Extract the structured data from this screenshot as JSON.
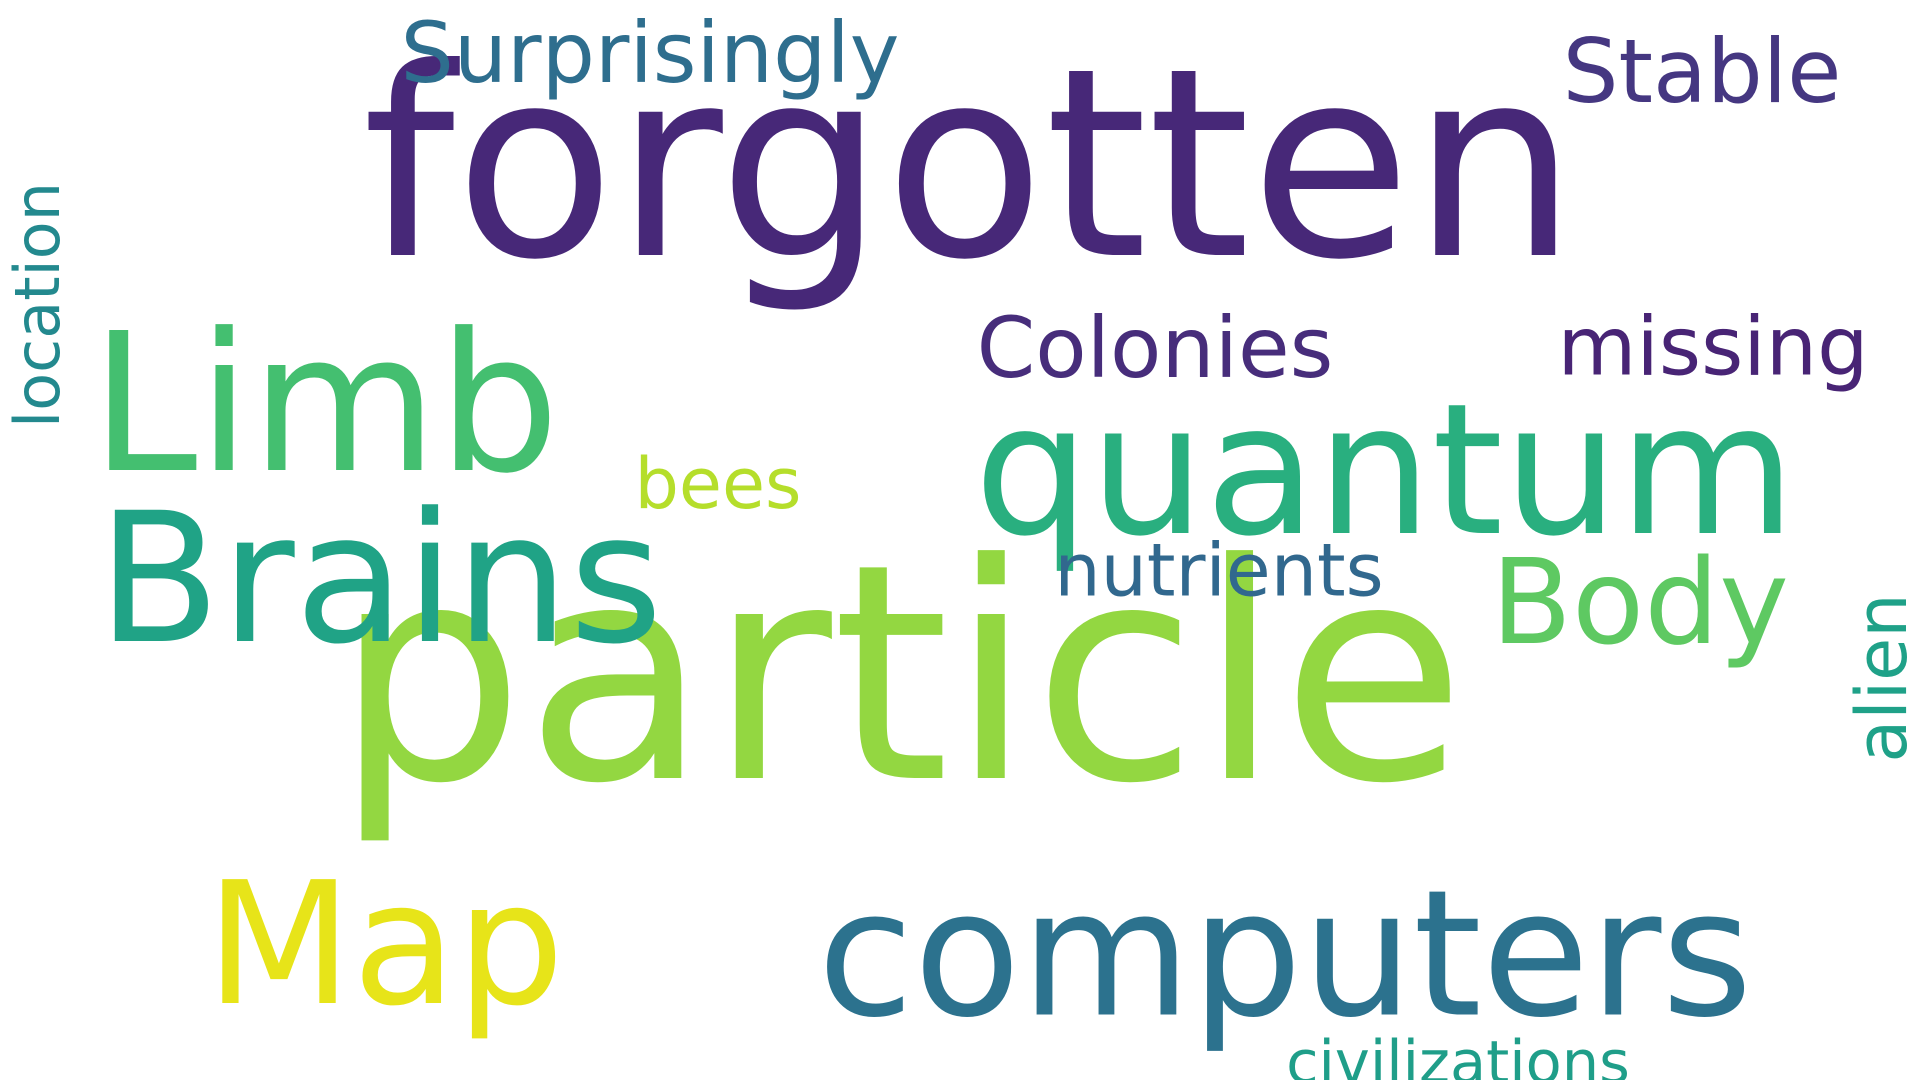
{
  "cloud": {
    "words": [
      {
        "text": "forgotten",
        "color": "#472878"
      },
      {
        "text": "particle",
        "color": "#93d741"
      },
      {
        "text": "quantum",
        "color": "#29af7f"
      },
      {
        "text": "computers",
        "color": "#2c728e"
      },
      {
        "text": "Limb",
        "color": "#44bf70"
      },
      {
        "text": "Brains",
        "color": "#20a386"
      },
      {
        "text": "Map",
        "color": "#e7e419"
      },
      {
        "text": "Body",
        "color": "#5ec962"
      },
      {
        "text": "Surprisingly",
        "color": "#2e6e8e"
      },
      {
        "text": "Stable",
        "color": "#453781"
      },
      {
        "text": "Colonies",
        "color": "#472d7b"
      },
      {
        "text": "missing",
        "color": "#482475"
      },
      {
        "text": "bees",
        "color": "#b5de2b"
      },
      {
        "text": "nutrients",
        "color": "#31688e"
      },
      {
        "text": "location",
        "color": "#23898e"
      },
      {
        "text": "alien",
        "color": "#1fa188"
      },
      {
        "text": "civilizations",
        "color": "#1f9e89"
      }
    ]
  }
}
